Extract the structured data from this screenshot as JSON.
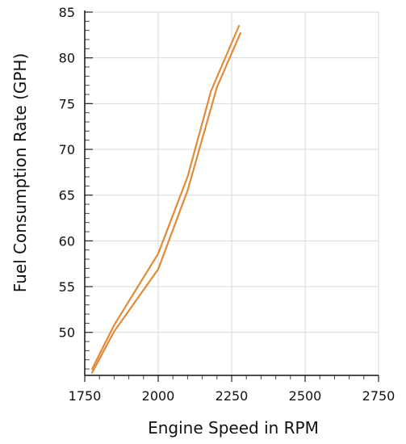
{
  "chart_data": {
    "type": "line",
    "xlabel": "Engine Speed in RPM",
    "ylabel": "Fuel Consumption Rate (GPH)",
    "xlim": [
      1750,
      2750
    ],
    "ylim": [
      45.3,
      85
    ],
    "x_ticks": [
      1750,
      2000,
      2250,
      2500,
      2750
    ],
    "x_tick_labels": [
      "1750",
      "2000",
      "2250",
      "2500",
      "2750"
    ],
    "y_ticks": [
      50,
      55,
      60,
      65,
      70,
      75,
      80,
      85
    ],
    "y_tick_labels": [
      "50",
      "55",
      "60",
      "65",
      "70",
      "75",
      "80",
      "85"
    ],
    "x_minor_step": 50,
    "y_minor_step": 1,
    "grid": true,
    "line_color": "#e08a3a",
    "series": [
      {
        "x": [
          1775,
          1850,
          2000,
          2100,
          2180,
          2275
        ],
        "y": [
          46.0,
          50.8,
          58.6,
          67.0,
          76.4,
          83.5
        ]
      },
      {
        "x": [
          1775,
          1850,
          2000,
          2100,
          2200,
          2280
        ],
        "y": [
          45.6,
          50.1,
          56.9,
          65.5,
          76.8,
          82.7
        ]
      }
    ]
  }
}
